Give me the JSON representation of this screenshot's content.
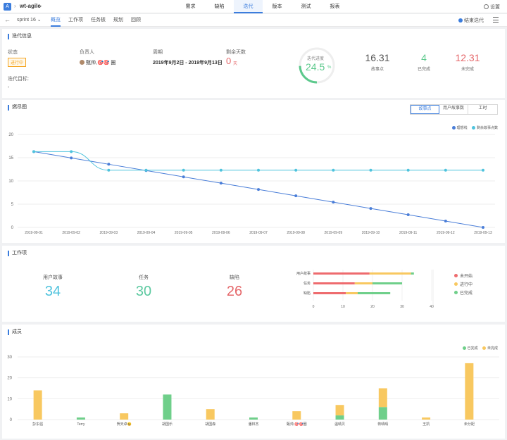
{
  "topbar": {
    "logo_glyph": "A",
    "project": "wt-agile",
    "nav": [
      "需求",
      "缺陷",
      "迭代",
      "版本",
      "测试",
      "报表"
    ],
    "active_nav": 2,
    "settings": "设置"
  },
  "subbar": {
    "sprint": "sprint 16",
    "tabs": [
      "概览",
      "工作项",
      "任务板",
      "规划",
      "回顾"
    ],
    "active_tab": 0,
    "end_sprint": "结束迭代"
  },
  "info": {
    "title": "迭代信息",
    "status_label": "状态",
    "status_value": "进行中",
    "owner_label": "负责人",
    "owner_value": "甄帅,🎯🎯 圈",
    "period_label": "周期",
    "period_value": "2019年9月2日 - 2019年9月13日",
    "remaining_label": "剩余天数",
    "remaining_value": "0",
    "remaining_unit": "天",
    "goal_label": "迭代目标:",
    "goal_value": "-",
    "progress_label": "迭代进度",
    "progress_value": "24.5",
    "progress_unit": "%",
    "progress_fraction": 0.245,
    "stats": [
      {
        "n": "16.31",
        "t": "故事点",
        "color": "#555555"
      },
      {
        "n": "4",
        "t": "已完成",
        "color": "#5cc98c"
      },
      {
        "n": "12.31",
        "t": "未完成",
        "color": "#e5686b"
      }
    ]
  },
  "burndown": {
    "title": "燃尽图",
    "segments": [
      "故事点",
      "用户故事数",
      "工时"
    ],
    "active_segment": 0,
    "legend": [
      {
        "name": "理想线",
        "color": "#4a7ed8"
      },
      {
        "name": "剩余故事点数",
        "color": "#4fc3dd"
      }
    ],
    "chart_data": {
      "type": "line",
      "x": [
        "2019-09-01",
        "2019-09-02",
        "2019-09-03",
        "2019-09-04",
        "2019-09-05",
        "2019-09-06",
        "2019-09-07",
        "2019-09-08",
        "2019-09-09",
        "2019-09-10",
        "2019-09-11",
        "2019-09-12",
        "2019-09-13"
      ],
      "yticks": [
        0,
        5,
        10,
        15,
        20
      ],
      "ylim": [
        0,
        20
      ],
      "series": [
        {
          "name": "理想线",
          "values": [
            16.31,
            14.95,
            13.59,
            12.23,
            10.87,
            9.52,
            8.16,
            6.8,
            5.44,
            4.08,
            2.72,
            1.36,
            0
          ]
        },
        {
          "name": "剩余故事点数",
          "values": [
            16.31,
            16.31,
            12.31,
            12.31,
            12.31,
            12.31,
            12.31,
            12.31,
            12.31,
            12.31,
            12.31,
            12.31,
            12.31
          ]
        }
      ]
    }
  },
  "workitems": {
    "title": "工作项",
    "stats": [
      {
        "t": "用户故事",
        "n": "34",
        "color": "#4fc3dd"
      },
      {
        "t": "任务",
        "n": "30",
        "color": "#5cc9a0"
      },
      {
        "t": "缺陷",
        "n": "26",
        "color": "#e5686b"
      }
    ],
    "legend": [
      {
        "name": "未开始",
        "color": "#ee6b6e"
      },
      {
        "name": "进行中",
        "color": "#f8c860"
      },
      {
        "name": "已完成",
        "color": "#6fcf8a"
      }
    ],
    "chart_data": {
      "type": "bar",
      "orientation": "horizontal",
      "stacked": true,
      "categories": [
        "用户故事",
        "任务",
        "缺陷"
      ],
      "xticks": [
        0,
        10,
        20,
        30,
        40
      ],
      "xlim": [
        0,
        40
      ],
      "series": [
        {
          "name": "未开始",
          "values": [
            19,
            14,
            11
          ]
        },
        {
          "name": "进行中",
          "values": [
            14,
            6,
            4
          ]
        },
        {
          "name": "已完成",
          "values": [
            1,
            10,
            11
          ]
        }
      ]
    }
  },
  "members": {
    "title": "成员",
    "legend": [
      {
        "name": "已完成",
        "color": "#6fcf8a"
      },
      {
        "name": "未完成",
        "color": "#f8c860"
      }
    ],
    "chart_data": {
      "type": "bar",
      "stacked": true,
      "categories": [
        "彭东强",
        "Terry",
        "贺天卓😀",
        "胡国乐",
        "胡国森",
        "潘林杰",
        "甄帅,🎯🎯圈",
        "温晴贝",
        "蒋晴晴",
        "王凯",
        "未分配"
      ],
      "yticks": [
        0,
        10,
        20,
        30
      ],
      "ylim": [
        0,
        30
      ],
      "series": [
        {
          "name": "已完成",
          "values": [
            0,
            1,
            0,
            12,
            0,
            1,
            0,
            2,
            6,
            0,
            0
          ]
        },
        {
          "name": "未完成",
          "values": [
            14,
            0,
            3,
            0,
            5,
            0,
            4,
            5,
            9,
            1,
            27
          ]
        }
      ]
    }
  }
}
